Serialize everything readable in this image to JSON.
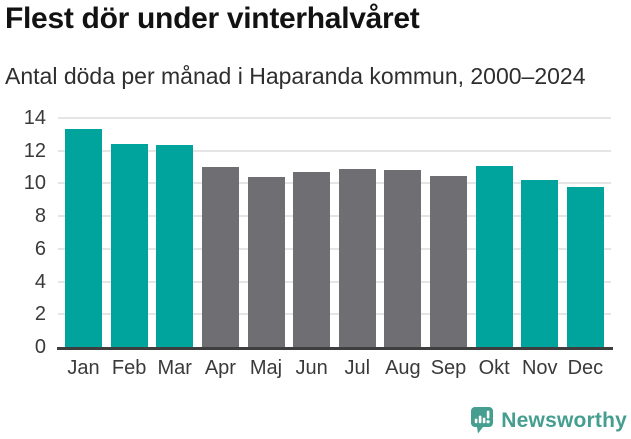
{
  "header": {
    "title": "Flest dör under vinterhalvåret",
    "subtitle": "Antal döda per månad i Haparanda kommun, 2000–2024"
  },
  "chart_data": {
    "type": "bar",
    "title": "Flest dör under vinterhalvåret",
    "subtitle": "Antal döda per månad i Haparanda kommun, 2000–2024",
    "categories": [
      "Jan",
      "Feb",
      "Mar",
      "Apr",
      "Maj",
      "Jun",
      "Jul",
      "Aug",
      "Sep",
      "Okt",
      "Nov",
      "Dec"
    ],
    "values": [
      13.3,
      12.4,
      12.35,
      11.0,
      10.4,
      10.7,
      10.9,
      10.85,
      10.45,
      11.05,
      10.2,
      9.8
    ],
    "xlabel": "",
    "ylabel": "",
    "ylim": [
      0,
      14
    ],
    "yticks": [
      0,
      2,
      4,
      6,
      8,
      10,
      12,
      14
    ],
    "grid": true,
    "legend": "none",
    "highlight_color": "#00a49c",
    "base_color": "#6e6e73",
    "bar_color_roles": [
      "highlight",
      "highlight",
      "highlight",
      "base",
      "base",
      "base",
      "base",
      "base",
      "base",
      "highlight",
      "highlight",
      "highlight"
    ]
  },
  "footer": {
    "brand": "Newsworthy",
    "brand_color": "#459e90"
  },
  "colors": {
    "accent_teal": "#00a49c",
    "neutral_gray": "#6e6e73",
    "gridline": "#e5e5e5",
    "axis_line": "#3e3e3e",
    "text_dark": "#121212",
    "logo_teal": "#459e90"
  }
}
